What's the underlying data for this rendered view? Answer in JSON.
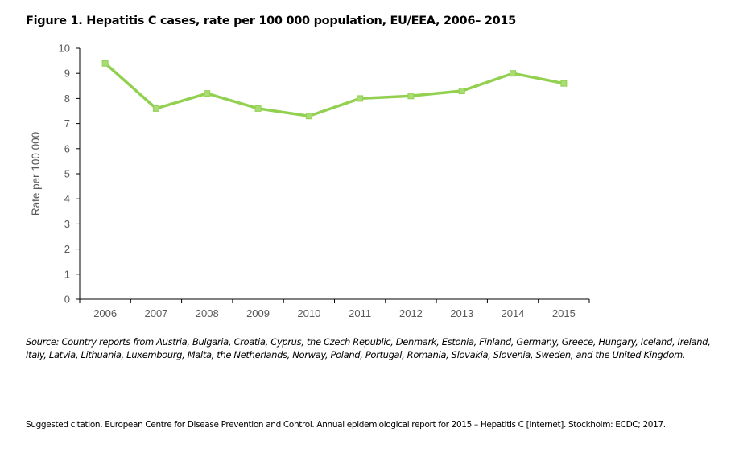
{
  "title": "Figure 1. Hepatitis C cases, rate per 100 000 population, EU/EEA, 2006– 2015",
  "source": "Source: Country reports from Austria, Bulgaria, Croatia, Cyprus, the Czech Republic, Denmark, Estonia, Finland, Germany, Greece, Hungary, Iceland, Ireland, Italy, Latvia, Lithuania, Luxembourg, Malta, the Netherlands, Norway, Poland, Portugal, Romania, Slovakia, Slovenia, Sweden, and the United Kingdom.",
  "citation": "Suggested citation. European Centre for Disease Prevention and Control. Annual epidemiological report for 2015 – Hepatitis C [Internet]. Stockholm: ECDC; 2017.",
  "colors": {
    "series": "#92d050",
    "marker_fill": "#a9dc72",
    "axis": "#000000",
    "text": "#595959"
  },
  "chart_data": {
    "type": "line",
    "title": "Figure 1. Hepatitis C cases, rate per 100 000 population, EU/EEA, 2006– 2015",
    "xlabel": "",
    "ylabel": "Rate per 100 000",
    "categories": [
      "2006",
      "2007",
      "2008",
      "2009",
      "2010",
      "2011",
      "2012",
      "2013",
      "2014",
      "2015"
    ],
    "series": [
      {
        "name": "Rate per 100 000",
        "values": [
          9.4,
          7.6,
          8.2,
          7.6,
          7.3,
          8.0,
          8.1,
          8.3,
          9.0,
          8.6
        ]
      }
    ],
    "ylim": [
      0,
      10
    ],
    "yticks": [
      0,
      1,
      2,
      3,
      4,
      5,
      6,
      7,
      8,
      9,
      10
    ],
    "grid": false,
    "legend": "none"
  }
}
